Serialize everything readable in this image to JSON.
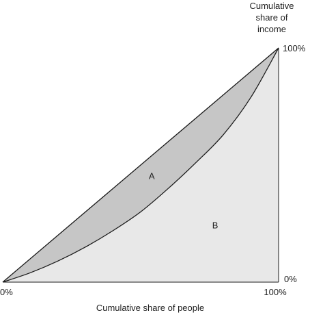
{
  "chart_data": {
    "type": "area",
    "title": "",
    "xlabel": "Cumulative share of people",
    "ylabel": [
      "Cumulative",
      "share of",
      "income"
    ],
    "xlim": [
      0,
      100
    ],
    "ylim": [
      0,
      100
    ],
    "x_tick_labels": [
      "0%",
      "100%"
    ],
    "y_tick_labels": [
      "0%",
      "100%"
    ],
    "series": [
      {
        "x": [
          0,
          10,
          20,
          30,
          40,
          50,
          60,
          70,
          80,
          90,
          100
        ],
        "y": [
          0,
          4,
          9,
          15,
          22,
          30,
          40,
          51,
          63,
          79,
          100
        ]
      }
    ],
    "line_of_equality": {
      "x": [
        0,
        100
      ],
      "y": [
        0,
        100
      ]
    },
    "regions": [
      {
        "label": "A",
        "x": 54,
        "y": 45
      },
      {
        "label": "B",
        "x": 77,
        "y": 24
      }
    ],
    "colors": {
      "region_a": "#c6c6c6",
      "region_b": "#e8e8e8",
      "line": "#1a1a1a"
    },
    "grid": false,
    "legend": "none"
  }
}
